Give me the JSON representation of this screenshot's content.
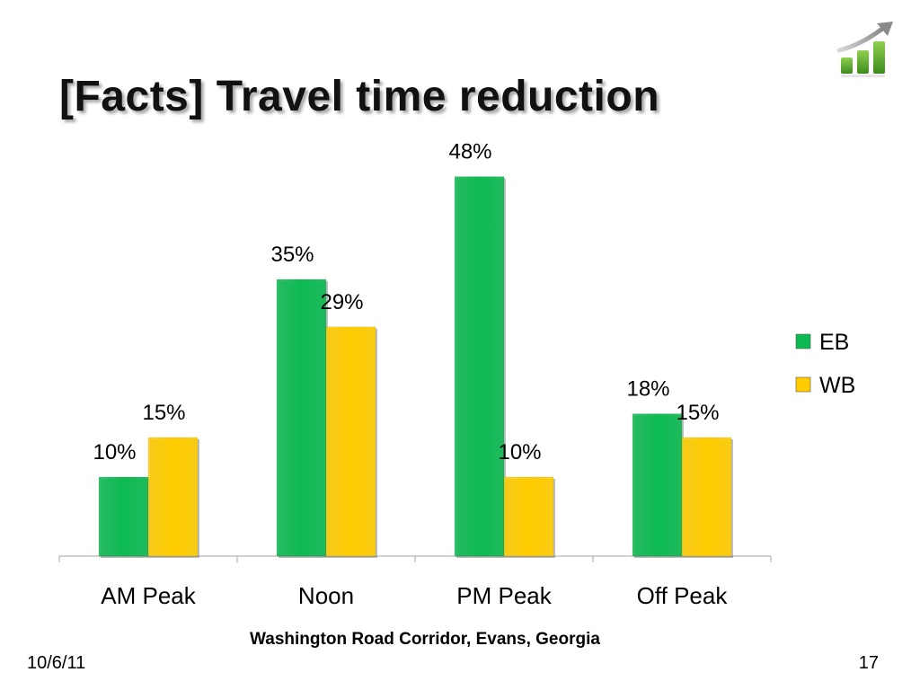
{
  "slide": {
    "title": "[Facts] Travel time reduction",
    "footer_note": "Washington Road Corridor, Evans, Georgia",
    "date": "10/6/11",
    "page_number": "17",
    "logo_icon": "growth-chart-icon"
  },
  "chart_data": {
    "type": "bar",
    "title": "",
    "xlabel": "",
    "ylabel": "",
    "categories": [
      "AM Peak",
      "Noon",
      "PM Peak",
      "Off Peak"
    ],
    "series": [
      {
        "name": "EB",
        "values": [
          10,
          35,
          48,
          18
        ],
        "labels": [
          "10%",
          "35%",
          "48%",
          "18%"
        ],
        "color": "#0DBA52"
      },
      {
        "name": "WB",
        "values": [
          15,
          29,
          10,
          15
        ],
        "labels": [
          "15%",
          "29%",
          "10%",
          "15%"
        ],
        "color": "#FFCC00"
      }
    ],
    "ylim": [
      0,
      50
    ],
    "grid": false,
    "legend_position": "right"
  }
}
